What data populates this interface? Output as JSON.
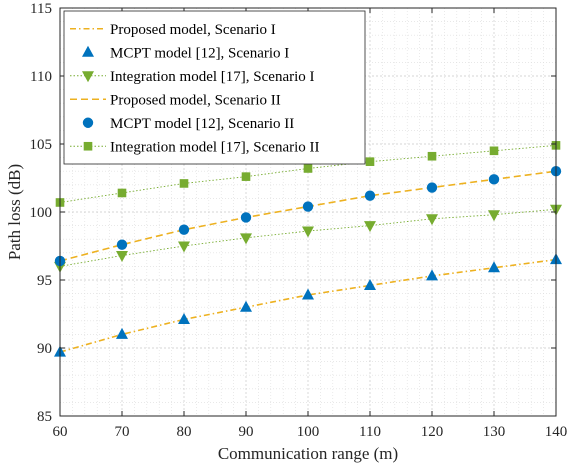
{
  "chart_data": {
    "type": "line",
    "xlabel": "Communication range (m)",
    "ylabel": "Path loss (dB)",
    "xlim": [
      60,
      140
    ],
    "ylim": [
      85,
      115
    ],
    "xticks": [
      60,
      70,
      80,
      90,
      100,
      110,
      120,
      130,
      140
    ],
    "yticks": [
      85,
      90,
      95,
      100,
      105,
      110,
      115
    ],
    "grid": true,
    "minor_grid": true,
    "legend_position": "top-left",
    "x": [
      60,
      70,
      80,
      90,
      100,
      110,
      120,
      130,
      140
    ],
    "series": [
      {
        "name": "Proposed model, Scenario I",
        "style": "dash-dot",
        "marker": "none",
        "color": "#EDB120",
        "values": [
          89.7,
          91.0,
          92.1,
          93.0,
          93.9,
          94.6,
          95.3,
          95.9,
          96.5
        ]
      },
      {
        "name": "MCPT model [12], Scenario I",
        "style": "none",
        "marker": "triangle-up",
        "color": "#0072BD",
        "values": [
          89.7,
          91.0,
          92.1,
          93.0,
          93.9,
          94.6,
          95.3,
          95.9,
          96.5
        ]
      },
      {
        "name": "Integration model [17], Scenario I",
        "style": "dotted",
        "marker": "triangle-down",
        "color": "#77AC30",
        "values": [
          96.0,
          96.8,
          97.5,
          98.1,
          98.6,
          99.0,
          99.5,
          99.8,
          100.2
        ]
      },
      {
        "name": "Proposed model, Scenario II",
        "style": "dashed",
        "marker": "none",
        "color": "#EDB120",
        "values": [
          96.4,
          97.6,
          98.7,
          99.6,
          100.4,
          101.2,
          101.8,
          102.4,
          103.0
        ]
      },
      {
        "name": "MCPT model [12], Scenario II",
        "style": "none",
        "marker": "circle",
        "color": "#0072BD",
        "values": [
          96.4,
          97.6,
          98.7,
          99.6,
          100.4,
          101.2,
          101.8,
          102.4,
          103.0
        ]
      },
      {
        "name": "Integration model [17], Scenario II",
        "style": "dotted",
        "marker": "square",
        "color": "#77AC30",
        "values": [
          100.7,
          101.4,
          102.1,
          102.6,
          103.2,
          103.7,
          104.1,
          104.5,
          104.9
        ]
      }
    ]
  }
}
